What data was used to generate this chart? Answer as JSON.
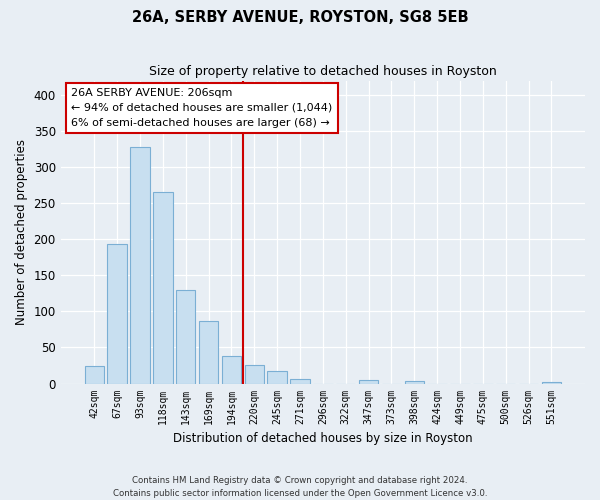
{
  "title": "26A, SERBY AVENUE, ROYSTON, SG8 5EB",
  "subtitle": "Size of property relative to detached houses in Royston",
  "xlabel": "Distribution of detached houses by size in Royston",
  "ylabel": "Number of detached properties",
  "bar_labels": [
    "42sqm",
    "67sqm",
    "93sqm",
    "118sqm",
    "143sqm",
    "169sqm",
    "194sqm",
    "220sqm",
    "245sqm",
    "271sqm",
    "296sqm",
    "322sqm",
    "347sqm",
    "373sqm",
    "398sqm",
    "424sqm",
    "449sqm",
    "475sqm",
    "500sqm",
    "526sqm",
    "551sqm"
  ],
  "bar_heights": [
    25,
    193,
    328,
    266,
    130,
    87,
    38,
    26,
    18,
    7,
    0,
    0,
    5,
    0,
    4,
    0,
    0,
    0,
    0,
    0,
    2
  ],
  "bar_color": "#c8dff0",
  "bar_edge_color": "#7bafd4",
  "vline_color": "#cc0000",
  "annotation_title": "26A SERBY AVENUE: 206sqm",
  "annotation_line1": "← 94% of detached houses are smaller (1,044)",
  "annotation_line2": "6% of semi-detached houses are larger (68) →",
  "annotation_box_facecolor": "#ffffff",
  "annotation_box_edgecolor": "#cc0000",
  "ylim": [
    0,
    420
  ],
  "yticks": [
    0,
    50,
    100,
    150,
    200,
    250,
    300,
    350,
    400
  ],
  "footer_line1": "Contains HM Land Registry data © Crown copyright and database right 2024.",
  "footer_line2": "Contains public sector information licensed under the Open Government Licence v3.0.",
  "bg_color": "#e8eef4",
  "plot_bg_color": "#e8eef4",
  "grid_color": "#ffffff",
  "vline_x_index": 6.5
}
